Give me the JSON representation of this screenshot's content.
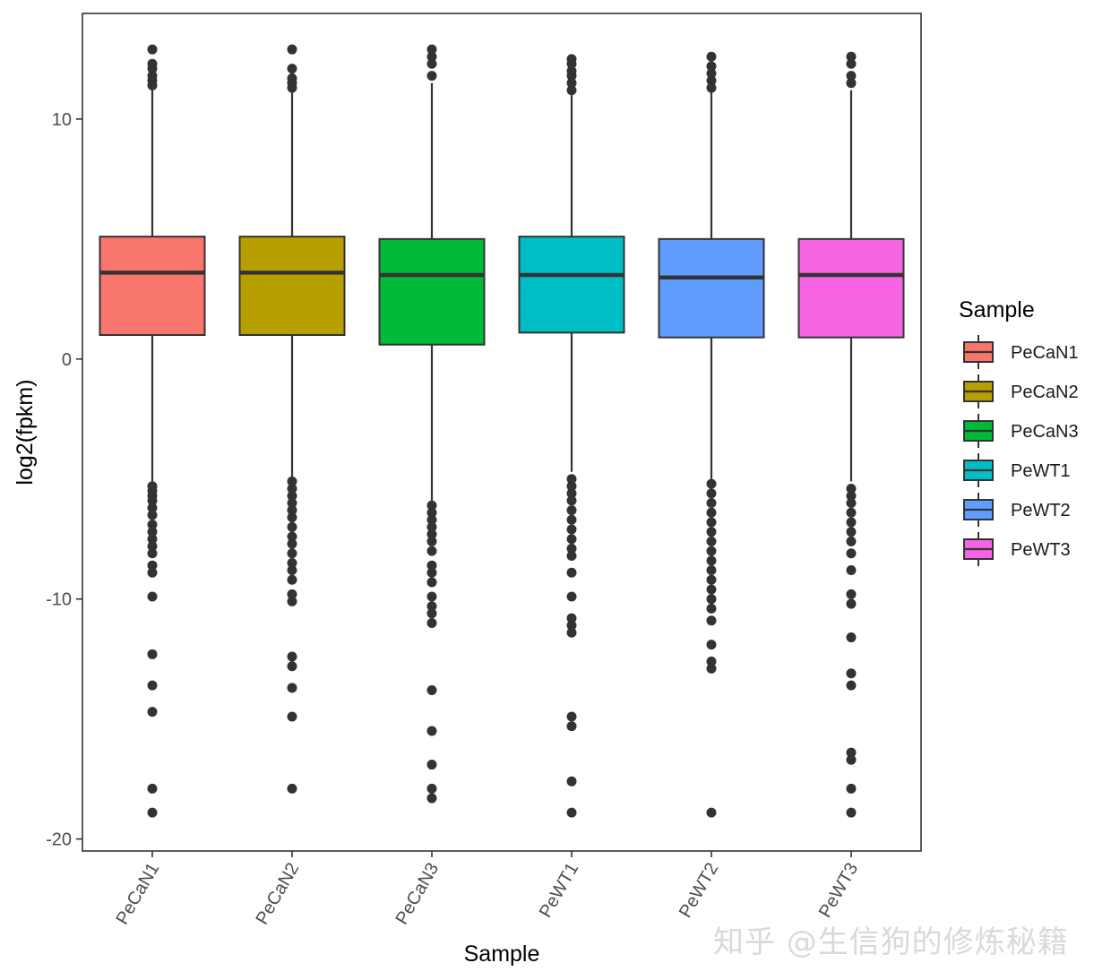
{
  "chart_data": {
    "type": "boxplot",
    "xlabel": "Sample",
    "ylabel": "log2(fpkm)",
    "ylim": [
      -20.5,
      14.4
    ],
    "yticks": [
      10,
      0,
      -10,
      -20
    ],
    "legend": {
      "title": "Sample",
      "position": "right"
    },
    "series": [
      {
        "name": "PeCaN1",
        "color": "#F8766D",
        "lower_whisker": -5.1,
        "q1": 1.0,
        "median": 3.6,
        "q3": 5.1,
        "upper_whisker": 11.2,
        "outliers": [
          11.4,
          11.6,
          11.8,
          12.1,
          12.3,
          12.9,
          -5.3,
          -5.5,
          -5.7,
          -5.9,
          -6.2,
          -6.5,
          -6.9,
          -7.2,
          -7.5,
          -7.8,
          -8.1,
          -8.6,
          -8.9,
          -9.9,
          -12.3,
          -13.6,
          -14.7,
          -17.9,
          -18.9
        ]
      },
      {
        "name": "PeCaN2",
        "color": "#B79F00",
        "lower_whisker": -4.9,
        "q1": 1.0,
        "median": 3.6,
        "q3": 5.1,
        "upper_whisker": 11.1,
        "outliers": [
          11.3,
          11.5,
          11.7,
          12.1,
          12.9,
          -5.1,
          -5.4,
          -5.7,
          -6.0,
          -6.3,
          -6.6,
          -7.0,
          -7.4,
          -7.7,
          -8.1,
          -8.5,
          -8.8,
          -9.2,
          -9.8,
          -10.1,
          -12.4,
          -12.8,
          -13.7,
          -14.9,
          -17.9
        ]
      },
      {
        "name": "PeCaN3",
        "color": "#00BA38",
        "lower_whisker": -5.9,
        "q1": 0.6,
        "median": 3.5,
        "q3": 5.0,
        "upper_whisker": 11.5,
        "outliers": [
          11.8,
          12.3,
          12.6,
          12.9,
          -6.1,
          -6.4,
          -6.7,
          -7.0,
          -7.3,
          -7.6,
          -8.0,
          -8.6,
          -8.9,
          -9.3,
          -9.9,
          -10.3,
          -10.6,
          -11.0,
          -13.8,
          -15.5,
          -16.9,
          -17.9,
          -18.3
        ]
      },
      {
        "name": "PeWT1",
        "color": "#00BFC4",
        "lower_whisker": -4.7,
        "q1": 1.1,
        "median": 3.5,
        "q3": 5.1,
        "upper_whisker": 11.0,
        "outliers": [
          11.2,
          11.5,
          11.8,
          12.0,
          12.3,
          12.5,
          -5.0,
          -5.3,
          -5.6,
          -5.9,
          -6.3,
          -6.7,
          -7.1,
          -7.5,
          -7.9,
          -8.2,
          -8.9,
          -9.9,
          -10.8,
          -11.1,
          -11.4,
          -14.9,
          -15.3,
          -17.6,
          -18.9
        ]
      },
      {
        "name": "PeWT2",
        "color": "#619CFF",
        "lower_whisker": -5.0,
        "q1": 0.9,
        "median": 3.4,
        "q3": 5.0,
        "upper_whisker": 11.1,
        "outliers": [
          11.3,
          11.6,
          11.9,
          12.2,
          12.6,
          -5.2,
          -5.6,
          -6.0,
          -6.4,
          -6.8,
          -7.2,
          -7.6,
          -8.0,
          -8.4,
          -8.8,
          -9.2,
          -9.6,
          -10.0,
          -10.4,
          -10.9,
          -11.9,
          -12.6,
          -12.9,
          -18.9
        ]
      },
      {
        "name": "PeWT3",
        "color": "#F564E3",
        "lower_whisker": -5.1,
        "q1": 0.9,
        "median": 3.5,
        "q3": 5.0,
        "upper_whisker": 11.2,
        "outliers": [
          11.5,
          11.8,
          12.3,
          12.6,
          -5.4,
          -5.7,
          -6.0,
          -6.4,
          -6.8,
          -7.2,
          -7.6,
          -8.1,
          -8.8,
          -9.8,
          -10.2,
          -11.6,
          -13.1,
          -13.6,
          -16.4,
          -16.7,
          -17.9,
          -18.9
        ]
      }
    ]
  },
  "watermark": "知乎 @生信狗的修炼秘籍"
}
